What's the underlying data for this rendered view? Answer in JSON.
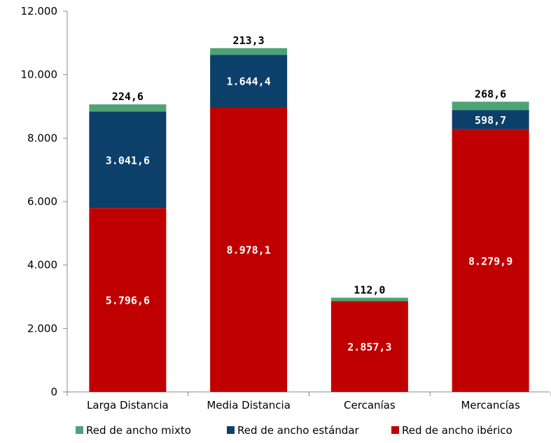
{
  "chart_data": {
    "type": "bar",
    "stacked": true,
    "categories": [
      "Larga Distancia",
      "Media Distancia",
      "Cercanías",
      "Mercancías"
    ],
    "series": [
      {
        "name": "Red de ancho ibérico",
        "color": "#c00000",
        "values": [
          5796.6,
          8978.1,
          2857.3,
          8279.9
        ],
        "labels": [
          "5.796,6",
          "8.978,1",
          "2.857,3",
          "8.279,9"
        ],
        "label_color": "#ffffff"
      },
      {
        "name": "Red de ancho estándar",
        "color": "#0c3f6a",
        "values": [
          3041.6,
          1644.4,
          0,
          598.7
        ],
        "labels": [
          "3.041,6",
          "1.644,4",
          "",
          "598,7"
        ],
        "label_color": "#ffffff"
      },
      {
        "name": "Red de ancho mixto",
        "color": "#4fa276",
        "values": [
          224.6,
          213.3,
          112.0,
          268.6
        ],
        "labels": [
          "224,6",
          "213,3",
          "112,0",
          "268,6"
        ],
        "label_color": "#000000"
      }
    ],
    "ylim": [
      0,
      12000
    ],
    "yticks": [
      0,
      2000,
      4000,
      6000,
      8000,
      10000,
      12000
    ],
    "ytick_labels": [
      "0",
      "2.000",
      "4.000",
      "6.000",
      "8.000",
      "10.000",
      "12.000"
    ],
    "grid": false,
    "legend_position": "bottom",
    "legend_order": [
      "Red de ancho mixto",
      "Red de ancho estándar",
      "Red de ancho ibérico"
    ],
    "title": "",
    "xlabel": "",
    "ylabel": ""
  }
}
